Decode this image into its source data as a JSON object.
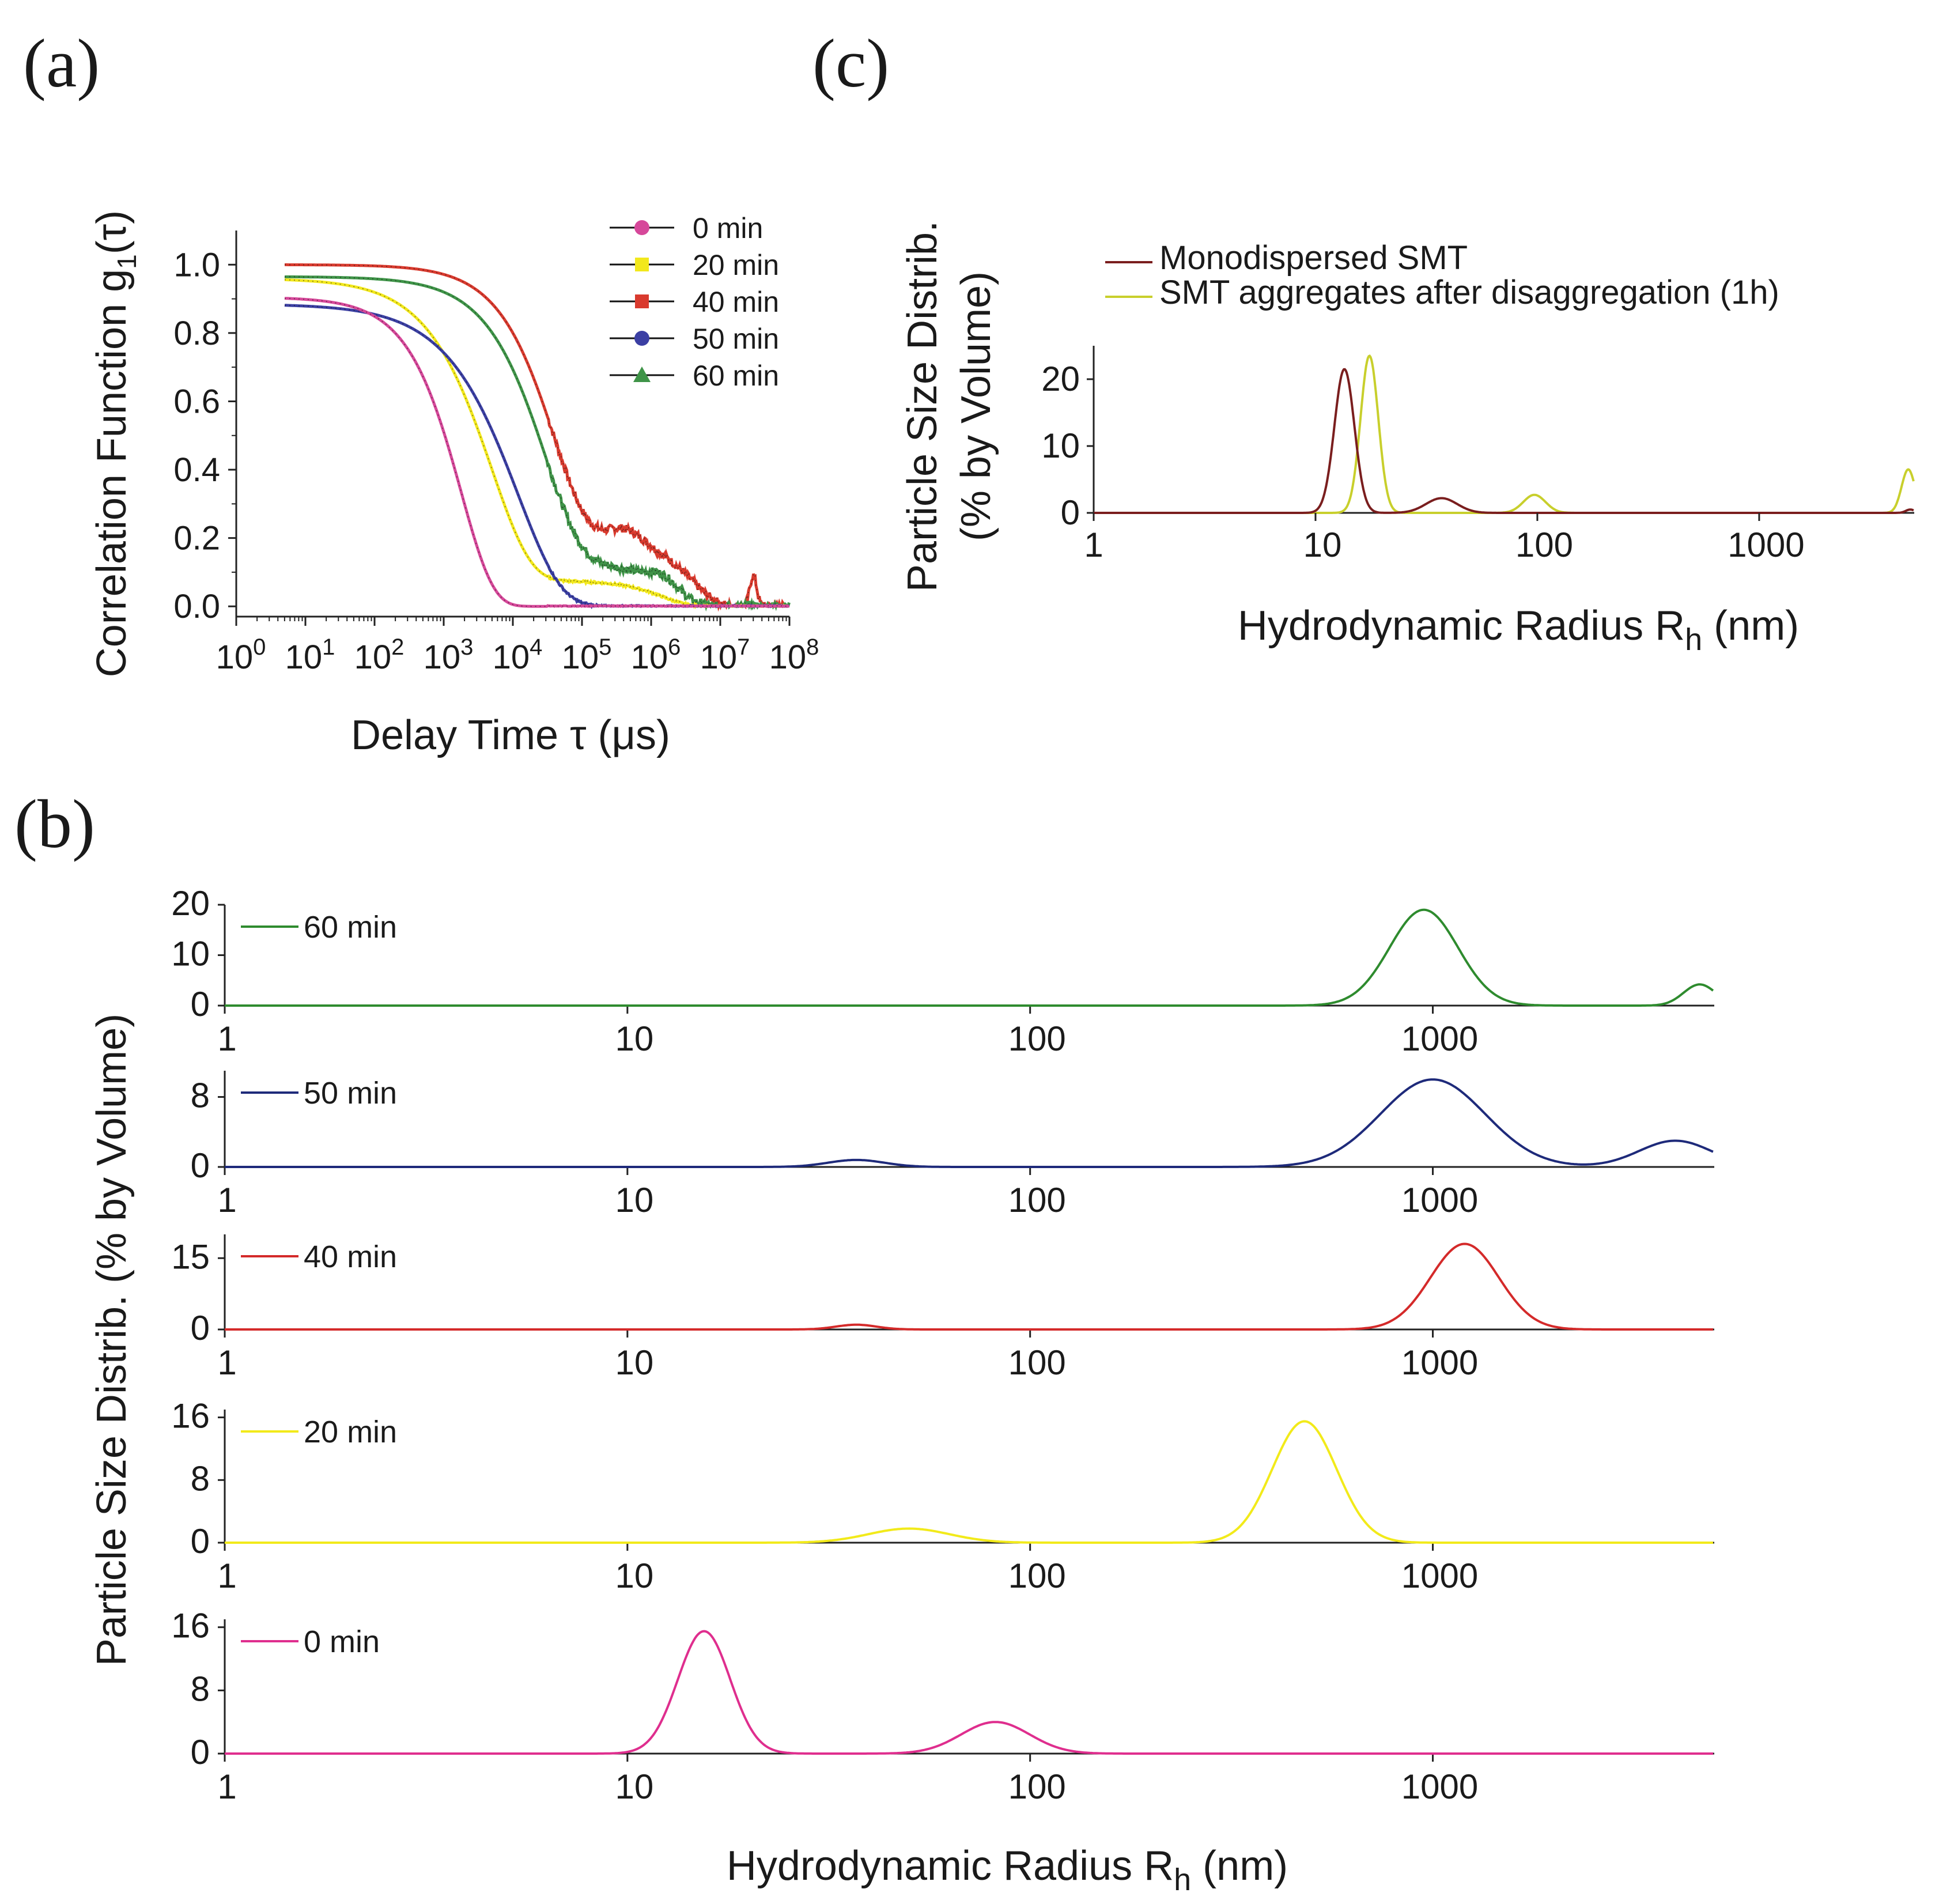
{
  "labels": {
    "a": "(a)",
    "b": "(b)",
    "c": "(c)"
  },
  "chart_data": [
    {
      "id": "a",
      "type": "line",
      "title": "",
      "xlabel_prefix": "Delay Time ",
      "xlabel_tau": "τ",
      "xlabel_suffix": " (μs)",
      "ylabel_prefix": "Correlation Function g",
      "ylabel_sub": "1",
      "ylabel_suffix": "(τ)",
      "xscale": "log",
      "xlim": [
        1,
        100000000
      ],
      "ylim": [
        -0.03,
        1.1
      ],
      "xticks_base": "10",
      "xticks_exp": [
        "0",
        "1",
        "2",
        "3",
        "4",
        "5",
        "6",
        "7",
        "8"
      ],
      "yticks": [
        "0.0",
        "0.2",
        "0.4",
        "0.6",
        "0.8",
        "1.0"
      ],
      "legend_position": "top-right",
      "series": [
        {
          "name": "0 min",
          "color": "#d6489a",
          "marker": "circle",
          "start": 0.905,
          "components": [
            {
              "a": 0.905,
              "tau": 1800,
              "beta": 0.95
            }
          ],
          "bumps": [],
          "noise": 0.002
        },
        {
          "name": "20 min",
          "color": "#f2e81c",
          "marker": "square",
          "start": 0.965,
          "components": [
            {
              "a": 0.885,
              "tau": 5000,
              "beta": 0.78
            },
            {
              "a": 0.075,
              "tau": 1500000,
              "beta": 1.2
            }
          ],
          "bumps": [],
          "noise": 0.003
        },
        {
          "name": "40 min",
          "color": "#d93a2e",
          "marker": "square",
          "start": 1.0,
          "components": [
            {
              "a": 0.8,
              "tau": 40000,
              "beta": 0.9
            },
            {
              "a": 0.2,
              "tau": 4000000,
              "beta": 1.2
            }
          ],
          "bumps": [
            {
              "x": 400000,
              "h": 0.04,
              "w": 0.25
            },
            {
              "x": 30000000,
              "h": 0.09,
              "w": 0.05
            }
          ],
          "noise": 0.012
        },
        {
          "name": "50 min",
          "color": "#3b3fa3",
          "marker": "circle",
          "start": 0.885,
          "components": [
            {
              "a": 0.885,
              "tau": 12000,
              "beta": 0.7
            }
          ],
          "bumps": [],
          "noise": 0.003
        },
        {
          "name": "60 min",
          "color": "#3f9448",
          "marker": "triangle",
          "start": 0.965,
          "components": [
            {
              "a": 0.835,
              "tau": 30000,
              "beta": 0.85
            },
            {
              "a": 0.13,
              "tau": 2000000,
              "beta": 1.1
            }
          ],
          "bumps": [
            {
              "x": 1500000,
              "h": 0.03,
              "w": 0.2
            }
          ],
          "noise": 0.012
        }
      ]
    },
    {
      "id": "b",
      "type": "line",
      "xlabel_prefix": "Hydrodynamic Radius R",
      "xlabel_sub": "h",
      "xlabel_suffix": " (nm)",
      "ylabel": "Particle Size Distrib. (% by Volume)",
      "xscale": "log",
      "xlim": [
        1,
        5000
      ],
      "xticks": [
        "1",
        "10",
        "100",
        "1000"
      ],
      "panels": [
        {
          "name": "60 min",
          "color": "#2e8b2e",
          "ylim": [
            0,
            20
          ],
          "yticks": [
            "0",
            "10",
            "20"
          ],
          "peaks": [
            {
              "x": 950,
              "h": 19,
              "w": 0.085
            },
            {
              "x": 4600,
              "h": 4.2,
              "w": 0.04
            }
          ]
        },
        {
          "name": "50 min",
          "color": "#1e2a7a",
          "ylim": [
            0,
            11
          ],
          "yticks": [
            "0",
            "8"
          ],
          "peaks": [
            {
              "x": 37,
              "h": 0.8,
              "w": 0.07
            },
            {
              "x": 1000,
              "h": 10,
              "w": 0.13
            },
            {
              "x": 4000,
              "h": 3,
              "w": 0.09
            }
          ]
        },
        {
          "name": "40 min",
          "color": "#d42a2a",
          "ylim": [
            0,
            20
          ],
          "yticks": [
            "0",
            "15"
          ],
          "peaks": [
            {
              "x": 37,
              "h": 1.0,
              "w": 0.05
            },
            {
              "x": 1200,
              "h": 18,
              "w": 0.085
            }
          ]
        },
        {
          "name": "20 min",
          "color": "#f2ea1a",
          "ylim": [
            0,
            17
          ],
          "yticks": [
            "0",
            "8",
            "16"
          ],
          "peaks": [
            {
              "x": 50,
              "h": 1.8,
              "w": 0.1
            },
            {
              "x": 480,
              "h": 15.5,
              "w": 0.08
            }
          ]
        },
        {
          "name": "0 min",
          "color": "#df2e8e",
          "ylim": [
            0,
            17
          ],
          "yticks": [
            "0",
            "8",
            "16"
          ],
          "peaks": [
            {
              "x": 15.5,
              "h": 15.5,
              "w": 0.065
            },
            {
              "x": 82,
              "h": 4,
              "w": 0.085
            }
          ]
        }
      ]
    },
    {
      "id": "c",
      "type": "line",
      "xlabel_prefix": "Hydrodynamic Radius R",
      "xlabel_sub": "h",
      "xlabel_suffix": " (nm)",
      "ylabel_line1": "Particle Size Distrib.",
      "ylabel_line2": "(% by Volume)",
      "xscale": "log",
      "xlim": [
        1,
        5000
      ],
      "ylim": [
        0,
        25
      ],
      "xticks": [
        "1",
        "10",
        "100",
        "1000"
      ],
      "yticks": [
        "0",
        "10",
        "20"
      ],
      "legend_position": "top-left",
      "series": [
        {
          "name": "Monodispersed SMT",
          "color": "#7a1e1e",
          "peaks": [
            {
              "x": 13.5,
              "h": 21.5,
              "w": 0.045
            },
            {
              "x": 37,
              "h": 2.2,
              "w": 0.07
            },
            {
              "x": 4800,
              "h": 0.5,
              "w": 0.02
            }
          ]
        },
        {
          "name": "SMT aggregates after disaggregation (1h)",
          "color": "#c8cf2c",
          "peaks": [
            {
              "x": 17.5,
              "h": 23.5,
              "w": 0.04
            },
            {
              "x": 97,
              "h": 2.7,
              "w": 0.05
            },
            {
              "x": 4700,
              "h": 6.5,
              "w": 0.03
            }
          ]
        }
      ]
    }
  ]
}
